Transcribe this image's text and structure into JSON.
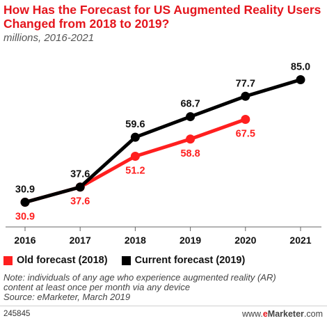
{
  "header": {
    "title": "How Has the Forecast for US Augmented Reality Users Changed from 2018 to 2019?",
    "subtitle": "millions, 2016-2021"
  },
  "legend": {
    "old_label": "Old forecast (2018)",
    "current_label": "Current forecast (2019)"
  },
  "notes": {
    "note_line1": "Note: individuals of any age who experience augmented reality (AR)",
    "note_line2": "content at least once per month via any device",
    "source": "Source: eMarketer, March 2019"
  },
  "footer": {
    "chart_id": "245845",
    "brand_prefix": "www.",
    "brand_e": "e",
    "brand_name": "Marketer",
    "brand_suffix": ".com"
  },
  "colors": {
    "old": "#ff1f1f",
    "current": "#000000",
    "title": "#e4151c",
    "axis": "#666666"
  },
  "chart_data": {
    "type": "line",
    "categories": [
      "2016",
      "2017",
      "2018",
      "2019",
      "2020",
      "2021"
    ],
    "series": [
      {
        "name": "Old forecast (2018)",
        "values": [
          30.9,
          37.6,
          51.2,
          58.8,
          67.5,
          null
        ],
        "labels": [
          "30.9",
          "37.6",
          "51.2",
          "58.8",
          "67.5",
          ""
        ]
      },
      {
        "name": "Current forecast (2019)",
        "values": [
          30.9,
          37.6,
          59.6,
          68.7,
          77.7,
          85.0
        ],
        "labels": [
          "30.9",
          "37.6",
          "59.6",
          "68.7",
          "77.7",
          "85.0"
        ]
      }
    ],
    "ylim": [
      20,
      95
    ],
    "grid": false,
    "legend_position": "bottom-left"
  }
}
